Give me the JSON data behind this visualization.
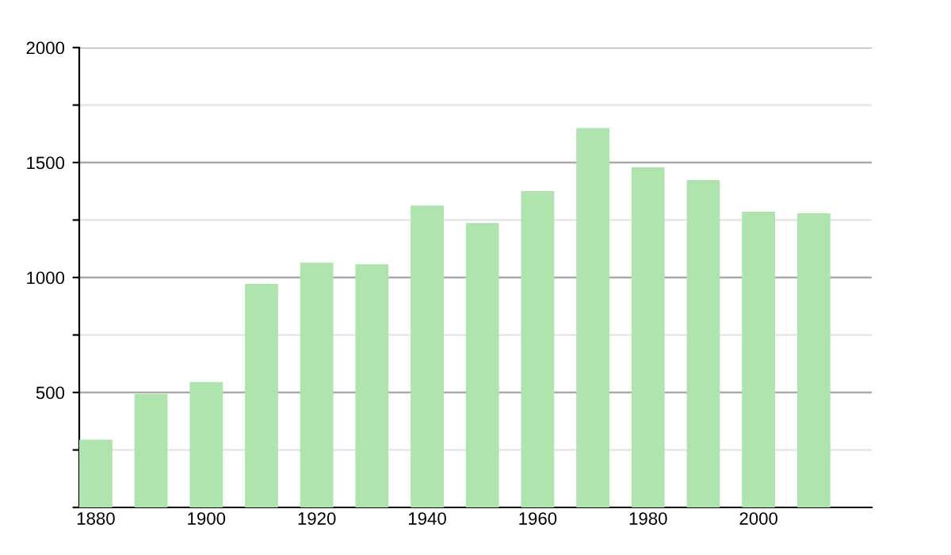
{
  "chart_data": {
    "type": "bar",
    "categories": [
      "1880",
      null,
      "1900",
      null,
      "1920",
      null,
      "1940",
      null,
      "1960",
      null,
      "1980",
      null,
      "2000",
      null
    ],
    "values": [
      295,
      493,
      546,
      972,
      1065,
      1058,
      1313,
      1237,
      1376,
      1650,
      1479,
      1424,
      1286,
      1279
    ],
    "color": "#b0e4ae",
    "ylim": [
      0,
      2000
    ],
    "yticks": [
      {
        "value": 0,
        "label": null
      },
      {
        "value": 250,
        "label": null
      },
      500,
      {
        "value": 750,
        "label": null
      },
      1000,
      {
        "value": 1250,
        "label": null
      },
      1500,
      {
        "value": 1750,
        "label": null
      },
      2000
    ],
    "grid": "y"
  }
}
